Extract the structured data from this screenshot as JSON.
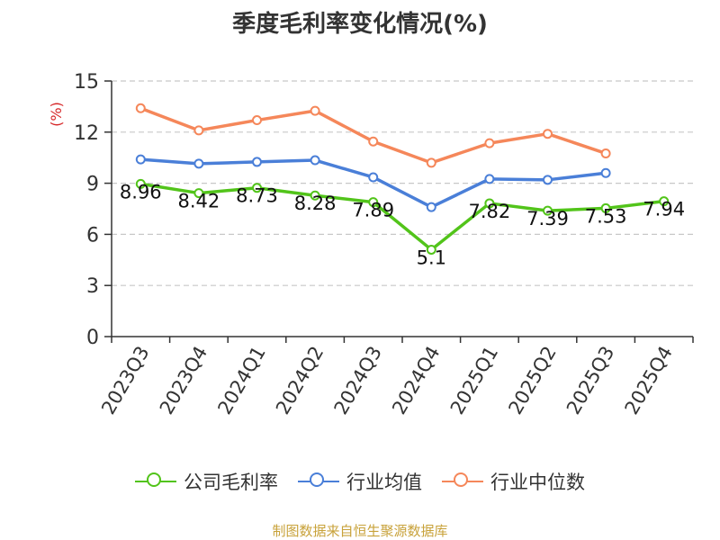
{
  "source_note": "制图数据来自恒生聚源数据库",
  "chart_data": {
    "type": "line",
    "title": "季度毛利率变化情况(%)",
    "ylabel": "(%)",
    "xlabel": "",
    "categories": [
      "2023Q3",
      "2023Q4",
      "2024Q1",
      "2024Q2",
      "2024Q3",
      "2024Q4",
      "2025Q1",
      "2025Q2",
      "2025Q3",
      "2025Q4"
    ],
    "ylim": [
      0,
      15
    ],
    "yticks": [
      0,
      3,
      6,
      9,
      12,
      15
    ],
    "grid": "horizontal dashed",
    "legend_position": "bottom",
    "series": [
      {
        "name": "公司毛利率",
        "color": "#52c41a",
        "show_labels": true,
        "values": [
          8.96,
          8.42,
          8.73,
          8.28,
          7.89,
          5.1,
          7.82,
          7.39,
          7.53,
          7.94
        ]
      },
      {
        "name": "行业均值",
        "color": "#4a7fd8",
        "show_labels": false,
        "values": [
          10.4,
          10.15,
          10.25,
          10.35,
          9.35,
          7.6,
          9.25,
          9.2,
          9.6,
          null
        ]
      },
      {
        "name": "行业中位数",
        "color": "#f5875a",
        "show_labels": false,
        "values": [
          13.4,
          12.1,
          12.7,
          13.25,
          11.45,
          10.2,
          11.35,
          11.9,
          10.75,
          null
        ]
      }
    ]
  }
}
